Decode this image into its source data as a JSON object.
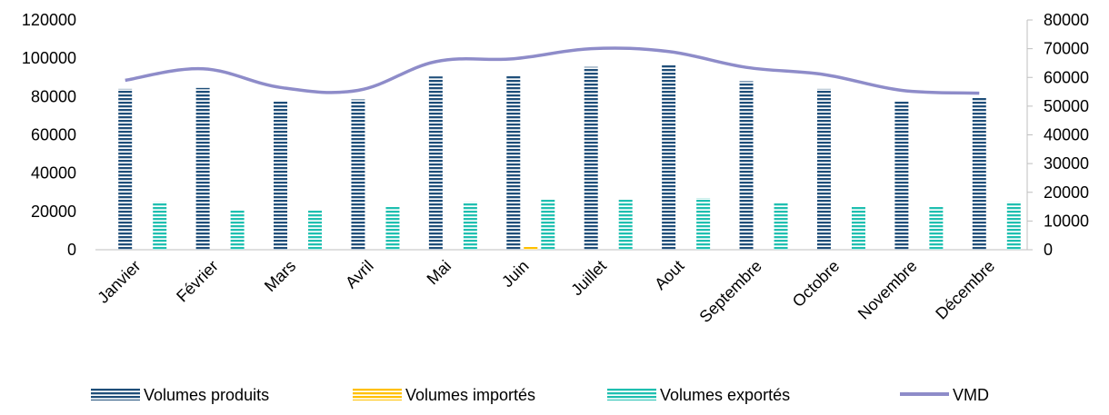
{
  "chart_data": {
    "type": "bar",
    "categories": [
      "Janvier",
      "Février",
      "Mars",
      "Avril",
      "Mai",
      "Juin",
      "Juillet",
      "Aout",
      "Septembre",
      "Octobre",
      "Novembre",
      "Décembre"
    ],
    "series": [
      {
        "name": "Volumes produits",
        "kind": "bar",
        "axis": "left",
        "color": "#1f4e79",
        "values": [
          84000,
          84500,
          77500,
          78500,
          90500,
          91000,
          95500,
          96500,
          88000,
          84000,
          78000,
          79500
        ]
      },
      {
        "name": "Volumes importés",
        "kind": "bar",
        "axis": "left",
        "color": "#ffc000",
        "values": [
          0,
          0,
          0,
          0,
          0,
          1500,
          0,
          0,
          0,
          0,
          0,
          0
        ]
      },
      {
        "name": "Volumes exportés",
        "kind": "bar",
        "axis": "left",
        "color": "#1fbfb0",
        "values": [
          25000,
          21000,
          21000,
          23000,
          25000,
          26500,
          26500,
          27000,
          24500,
          23000,
          22500,
          25000
        ]
      },
      {
        "name": "VMD",
        "kind": "line",
        "axis": "right",
        "color": "#8e8cc9",
        "values": [
          59000,
          63000,
          56500,
          55500,
          65500,
          66500,
          70000,
          69000,
          63500,
          61000,
          55500,
          54500
        ]
      }
    ],
    "y_left": {
      "min": 0,
      "max": 120000,
      "ticks": [
        "0",
        "20000",
        "40000",
        "60000",
        "80000",
        "100000",
        "120000"
      ]
    },
    "y_right": {
      "min": 0,
      "max": 80000,
      "ticks": [
        "0",
        "10000",
        "20000",
        "30000",
        "40000",
        "50000",
        "60000",
        "70000",
        "80000"
      ]
    },
    "grid": false,
    "legend_position": "bottom"
  }
}
